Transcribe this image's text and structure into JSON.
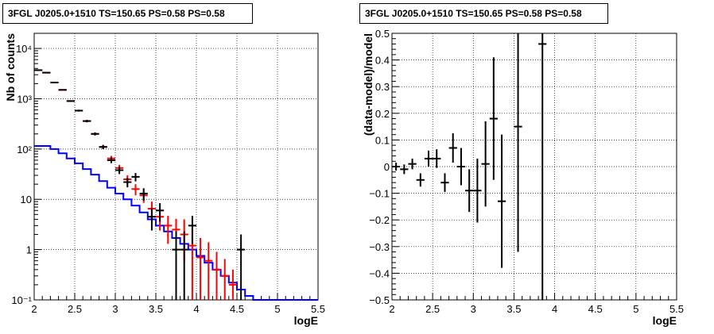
{
  "chart_data": [
    {
      "type": "histogram",
      "title": "3FGL J0205.0+1510 TS=150.65 PS=0.58 PS=0.58",
      "xlabel": "logE",
      "ylabel": "Nb of counts",
      "xlim": [
        2,
        5.5
      ],
      "ylim": [
        0.1,
        20000
      ],
      "yscale": "log",
      "grid": true,
      "x_ticks": [
        2,
        2.5,
        3,
        3.5,
        4,
        4.5,
        5,
        5.5
      ],
      "x_tick_labels": [
        "2",
        "2.5",
        "3",
        "3.5",
        "4",
        "4.5",
        "5",
        "5.5"
      ],
      "y_ticks": [
        0.1,
        1,
        10,
        100,
        1000,
        10000
      ],
      "y_tick_labels": [
        "10⁻¹",
        "1",
        "10",
        "10²",
        "10³",
        "10⁴"
      ],
      "series": [
        {
          "color": "#0000ff",
          "style": "step",
          "bin_edges": [
            2.0,
            2.1,
            2.2,
            2.3,
            2.4,
            2.5,
            2.6,
            2.7,
            2.8,
            2.9,
            3.0,
            3.1,
            3.2,
            3.3,
            3.4,
            3.5,
            3.6,
            3.7,
            3.8,
            3.9,
            4.0,
            4.1,
            4.2,
            4.3,
            4.4,
            4.5,
            4.6,
            4.7,
            4.8,
            4.9,
            5.0,
            5.1,
            5.2,
            5.3,
            5.4,
            5.5
          ],
          "values": [
            115,
            115,
            100,
            82,
            65,
            52,
            40,
            31,
            23,
            17,
            13,
            10,
            7.5,
            5.5,
            4,
            3,
            2.3,
            1.7,
            1.3,
            1.0,
            0.75,
            0.55,
            0.4,
            0.3,
            0.22,
            0.16,
            0.12,
            0.1,
            0.1,
            0.1,
            0.1,
            0.1,
            0.1,
            0.1,
            0.1
          ]
        },
        {
          "color": "#ff0000",
          "style": "errorbar",
          "x": [
            2.05,
            2.15,
            2.25,
            2.35,
            2.45,
            2.55,
            2.65,
            2.75,
            2.85,
            2.95,
            3.05,
            3.15,
            3.25,
            3.35,
            3.45,
            3.55,
            3.65,
            3.75,
            3.85,
            3.95,
            4.05,
            4.15,
            4.25,
            4.35,
            4.45
          ],
          "y": [
            3700,
            3300,
            2100,
            1500,
            900,
            580,
            360,
            200,
            110,
            65,
            42,
            25,
            16,
            12,
            6.5,
            4.5,
            3.0,
            2.5,
            2.0,
            1.2,
            0.7,
            0.6,
            0.4,
            0.3,
            0.2
          ],
          "yerr_low": [
            60,
            57,
            46,
            39,
            30,
            24,
            19,
            14,
            10.5,
            8,
            6.5,
            5,
            4,
            3.5,
            2.5,
            2.1,
            1.7,
            1.6,
            1.41,
            1.1,
            0.6,
            0.5,
            0.32,
            0.22,
            0.12
          ],
          "yerr_high": [
            60,
            57,
            46,
            39,
            30,
            24,
            19,
            14,
            10.5,
            8,
            6.5,
            5,
            4,
            3.5,
            2.5,
            2.1,
            1.7,
            1.6,
            2.0,
            1.3,
            1.0,
            0.8,
            0.5,
            0.35,
            0.2
          ]
        },
        {
          "color": "#000000",
          "style": "errorbar",
          "x": [
            2.05,
            2.15,
            2.25,
            2.35,
            2.45,
            2.55,
            2.65,
            2.75,
            2.85,
            2.95,
            3.05,
            3.15,
            3.25,
            3.35,
            3.45,
            3.55,
            3.75,
            3.85,
            3.95,
            4.55
          ],
          "y": [
            3700,
            3300,
            2100,
            1500,
            900,
            580,
            360,
            200,
            110,
            60,
            38,
            22,
            28,
            13,
            4.5,
            6.0,
            1.0,
            1.0,
            3.0,
            1.0
          ],
          "yerr_low": [
            60,
            57,
            46,
            39,
            30,
            24,
            19,
            14,
            10.5,
            7.7,
            6.2,
            4.7,
            5.3,
            3.6,
            2.1,
            2.4,
            0.9,
            0.9,
            1.7,
            0.9
          ],
          "yerr_high": [
            60,
            57,
            46,
            39,
            30,
            24,
            19,
            14,
            10.5,
            7.7,
            6.2,
            4.7,
            5.3,
            3.6,
            2.1,
            2.4,
            1.3,
            1.3,
            1.7,
            1.0
          ]
        }
      ]
    },
    {
      "type": "scatter",
      "title": "3FGL J0205.0+1510 TS=150.65 PS=0.58 PS=0.58",
      "xlabel": "logE",
      "ylabel": "(data-model)/model",
      "xlim": [
        2,
        5.5
      ],
      "ylim": [
        -0.5,
        0.5
      ],
      "grid": true,
      "x_ticks": [
        2,
        2.5,
        3,
        3.5,
        4,
        4.5,
        5,
        5.5
      ],
      "x_tick_labels": [
        "2",
        "2.5",
        "3",
        "3.5",
        "4",
        "4.5",
        "5",
        "5.5"
      ],
      "y_ticks": [
        -0.5,
        -0.4,
        -0.3,
        -0.2,
        -0.1,
        0,
        0.1,
        0.2,
        0.3,
        0.4,
        0.5
      ],
      "y_tick_labels": [
        "−0.5",
        "−0.4",
        "−0.3",
        "−0.2",
        "−0.1",
        "0",
        "0.1",
        "0.2",
        "0.3",
        "0.4",
        "0.5"
      ],
      "series": [
        {
          "color": "#000000",
          "style": "errorbar",
          "x": [
            2.05,
            2.15,
            2.25,
            2.35,
            2.45,
            2.55,
            2.65,
            2.75,
            2.85,
            2.95,
            3.05,
            3.15,
            3.25,
            3.35,
            3.55,
            3.85
          ],
          "y": [
            0.0,
            -0.01,
            0.01,
            -0.05,
            0.03,
            0.03,
            -0.06,
            0.07,
            0.0,
            -0.09,
            -0.09,
            0.01,
            0.18,
            -0.13,
            0.15,
            0.46
          ],
          "yerr": [
            0.015,
            0.018,
            0.02,
            0.025,
            0.03,
            0.035,
            0.035,
            0.055,
            0.07,
            0.08,
            0.12,
            0.16,
            0.23,
            0.25,
            0.47,
            0.96
          ]
        }
      ]
    }
  ]
}
